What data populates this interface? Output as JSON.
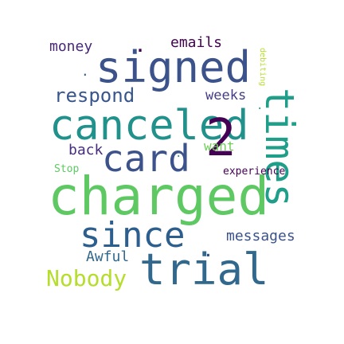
{
  "words": {
    "charged": "charged",
    "canceled": "canceled",
    "signed": "signed",
    "trial": "trial",
    "since": "since",
    "card": "card",
    "two": "2",
    "times": "times",
    "respond": "respond",
    "nobody": "Nobody",
    "money": "money",
    "emails": "emails",
    "messages": "messages",
    "back": "back",
    "weeks": "weeks",
    "want": "want",
    "awful": "Awful",
    "experience": "experience",
    "stop": "Stop",
    "debiting": "debiting",
    "dot_top": ".",
    "dot_mid": ".",
    "dot_small1": ".",
    "dot_small2": ".",
    "dot_signed": "."
  },
  "colors": {
    "teal": "#26828e",
    "dark_navy": "#3b528b",
    "deep_indigo": "#482878",
    "dark_purple": "#440154",
    "slate_blue": "#31688e",
    "green": "#35b779",
    "light_green": "#6ece58",
    "lime": "#b5de2b",
    "mint": "#1f9e89",
    "navy": "#2a4e8a"
  }
}
